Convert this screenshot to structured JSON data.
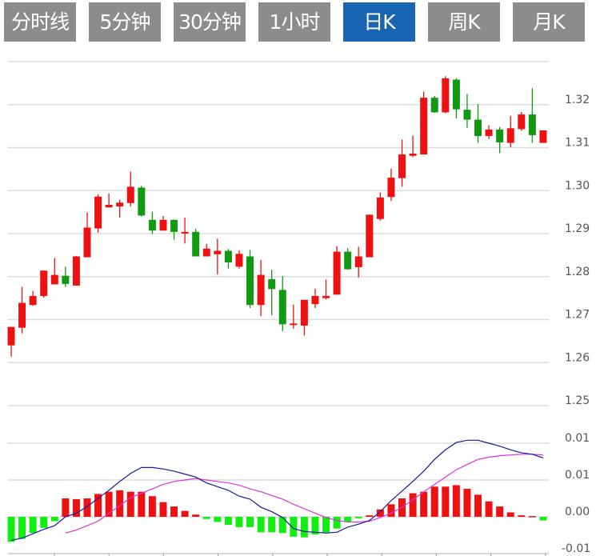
{
  "tabs": [
    {
      "label": "分时线",
      "active": false
    },
    {
      "label": "5分钟",
      "active": false
    },
    {
      "label": "30分钟",
      "active": false
    },
    {
      "label": "1小时",
      "active": false
    },
    {
      "label": "日K",
      "active": true
    },
    {
      "label": "周K",
      "active": false
    },
    {
      "label": "月K",
      "active": false
    }
  ],
  "colors": {
    "up": "#ee1111",
    "down": "#119911",
    "hist_up": "#ee1111",
    "hist_down": "#11ee11",
    "dif": "#1a1a9a",
    "dea": "#dd33dd",
    "grid": "#dddddd",
    "active_tab": "#1a64b4",
    "tab": "#8c8c8c"
  },
  "chart_data": [
    {
      "type": "candlestick",
      "ylim": [
        1.25,
        1.33
      ],
      "grid": true,
      "y_ticks": [
        {
          "value": 1.32,
          "label": "1.32"
        },
        {
          "value": 1.31,
          "label": "1.31"
        },
        {
          "value": 1.3,
          "label": "1.30"
        },
        {
          "value": 1.29,
          "label": "1.29"
        },
        {
          "value": 1.28,
          "label": "1.28"
        },
        {
          "value": 1.27,
          "label": "1.27"
        },
        {
          "value": 1.26,
          "label": "1.26"
        },
        {
          "value": 1.25,
          "label": "1.25"
        }
      ],
      "ohlc": [
        [
          1.264,
          1.2683,
          1.2614,
          1.2683
        ],
        [
          1.2681,
          1.2776,
          1.2668,
          1.2739
        ],
        [
          1.2734,
          1.2767,
          1.2732,
          1.2755
        ],
        [
          1.2755,
          1.2814,
          1.2751,
          1.2814
        ],
        [
          1.2782,
          1.2843,
          1.2782,
          1.2804
        ],
        [
          1.2802,
          1.2823,
          1.2776,
          1.2783
        ],
        [
          1.2779,
          1.2848,
          1.2779,
          1.2847
        ],
        [
          1.2845,
          1.2949,
          1.2845,
          1.2914
        ],
        [
          1.2912,
          1.2991,
          1.2902,
          1.2986
        ],
        [
          1.2961,
          1.2993,
          1.2961,
          1.2967
        ],
        [
          1.2963,
          1.2979,
          1.2937,
          1.2972
        ],
        [
          1.2971,
          1.3044,
          1.2963,
          1.3009
        ],
        [
          1.3007,
          1.3011,
          1.294,
          1.2942
        ],
        [
          1.2932,
          1.2951,
          1.2899,
          1.2907
        ],
        [
          1.2907,
          1.2941,
          1.2907,
          1.2932
        ],
        [
          1.2932,
          1.2933,
          1.2886,
          1.2904
        ],
        [
          1.2902,
          1.2937,
          1.2877,
          1.2904
        ],
        [
          1.2904,
          1.2911,
          1.2847,
          1.2847
        ],
        [
          1.2847,
          1.2876,
          1.2847,
          1.2865
        ],
        [
          1.2852,
          1.2888,
          1.2805,
          1.286
        ],
        [
          1.286,
          1.2864,
          1.2819,
          1.2833
        ],
        [
          1.2823,
          1.2861,
          1.2819,
          1.2853
        ],
        [
          1.2847,
          1.2862,
          1.2727,
          1.2734
        ],
        [
          1.2734,
          1.2839,
          1.2708,
          1.2804
        ],
        [
          1.2794,
          1.2816,
          1.271,
          1.2771
        ],
        [
          1.2769,
          1.2801,
          1.2673,
          1.2689
        ],
        [
          1.2689,
          1.2735,
          1.2679,
          1.2691
        ],
        [
          1.2686,
          1.2746,
          1.2663,
          1.2746
        ],
        [
          1.2736,
          1.2772,
          1.2727,
          1.2755
        ],
        [
          1.275,
          1.2793,
          1.2747,
          1.2755
        ],
        [
          1.2758,
          1.2871,
          1.2758,
          1.2858
        ],
        [
          1.2858,
          1.2866,
          1.2816,
          1.2817
        ],
        [
          1.2822,
          1.2869,
          1.2798,
          1.2847
        ],
        [
          1.2845,
          1.2944,
          1.2845,
          1.2944
        ],
        [
          1.2934,
          1.2996,
          1.293,
          1.2984
        ],
        [
          1.2985,
          1.3051,
          1.2976,
          1.303
        ],
        [
          1.3029,
          1.3119,
          1.3009,
          1.3084
        ],
        [
          1.3081,
          1.3128,
          1.3078,
          1.3086
        ],
        [
          1.3084,
          1.323,
          1.3084,
          1.3216
        ],
        [
          1.3216,
          1.322,
          1.3181,
          1.3182
        ],
        [
          1.3182,
          1.3266,
          1.318,
          1.3261
        ],
        [
          1.3258,
          1.3261,
          1.3168,
          1.3189
        ],
        [
          1.3188,
          1.3225,
          1.3146,
          1.3165
        ],
        [
          1.3165,
          1.3201,
          1.3111,
          1.3127
        ],
        [
          1.3127,
          1.3152,
          1.312,
          1.3142
        ],
        [
          1.3142,
          1.3148,
          1.3087,
          1.3112
        ],
        [
          1.3111,
          1.3174,
          1.3101,
          1.3145
        ],
        [
          1.3143,
          1.3183,
          1.3139,
          1.3177
        ],
        [
          1.3177,
          1.3238,
          1.3111,
          1.3129
        ],
        [
          1.3111,
          1.314,
          1.3111,
          1.314
        ]
      ]
    },
    {
      "type": "macd",
      "ylim": [
        -0.005,
        0.0155
      ],
      "grid": true,
      "y_ticks": [
        {
          "value": 0.01,
          "label": "0.01"
        },
        {
          "value": 0.005,
          "label": "0.01"
        },
        {
          "value": 0,
          "label": "0.00"
        },
        {
          "value": -0.005,
          "label": "-0.01"
        }
      ],
      "histogram": [
        -0.0034,
        -0.003,
        -0.0022,
        -0.0015,
        -0.0006,
        0.0025,
        0.0024,
        0.0025,
        0.0031,
        0.0034,
        0.0036,
        0.0034,
        0.0034,
        0.0028,
        0.002,
        0.0014,
        0.0008,
        0.0003,
        -0.0003,
        -0.0007,
        -0.0011,
        -0.0014,
        -0.0014,
        -0.0021,
        -0.0021,
        -0.0022,
        -0.0027,
        -0.0028,
        -0.0024,
        -0.0021,
        -0.0016,
        -0.0007,
        -0.0002,
        0.0002,
        0.001,
        0.0017,
        0.0025,
        0.0032,
        0.0034,
        0.0041,
        0.0041,
        0.0043,
        0.0038,
        0.003,
        0.0021,
        0.0014,
        0.0006,
        0.0002,
        0.0001,
        -0.0005
      ],
      "dif": [
        -0.0032,
        -0.0029,
        -0.0023,
        -0.0017,
        -0.0012,
        0.0,
        0.0005,
        0.0014,
        0.0025,
        0.0036,
        0.0048,
        0.0059,
        0.0067,
        0.0067,
        0.0065,
        0.0062,
        0.0058,
        0.0054,
        0.0046,
        0.0041,
        0.0036,
        0.0028,
        0.0024,
        0.0013,
        0.0007,
        -0.0001,
        -0.0016,
        -0.002,
        -0.0021,
        -0.0022,
        -0.0021,
        -0.0014,
        -0.001,
        -0.0005,
        0.0007,
        0.0022,
        0.0035,
        0.0048,
        0.0062,
        0.0078,
        0.0091,
        0.0101,
        0.0104,
        0.0104,
        0.01,
        0.0096,
        0.0091,
        0.0087,
        0.0085,
        0.008
      ],
      "dea": [
        null,
        null,
        null,
        null,
        null,
        -0.0022,
        -0.0018,
        -0.0012,
        -0.0006,
        0.0005,
        0.0015,
        0.0026,
        0.0032,
        0.0038,
        0.0044,
        0.0048,
        0.005,
        0.0052,
        0.005,
        0.0048,
        0.0046,
        0.0043,
        0.0038,
        0.0034,
        0.0029,
        0.0024,
        0.0017,
        0.0011,
        0.0005,
        -0.0001,
        -0.0005,
        -0.0007,
        -0.0007,
        -0.0006,
        -0.0001,
        0.0005,
        0.0013,
        0.0023,
        0.0034,
        0.0044,
        0.0054,
        0.0064,
        0.0071,
        0.0078,
        0.0081,
        0.0083,
        0.0084,
        0.0085,
        0.0085,
        0.0084
      ]
    }
  ]
}
